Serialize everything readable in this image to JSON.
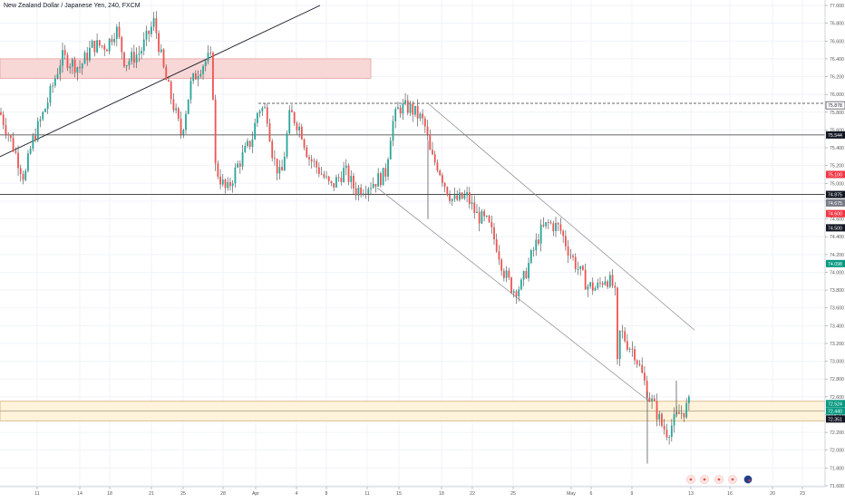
{
  "chart_title": "New Zealand Dollar / Japanese Yen, 240, FXCM",
  "colors": {
    "up": "#26a69a",
    "down": "#ef5350",
    "wick": "#555555",
    "resistance_zone": "#f8d7d7",
    "support_zone": "#fff3dc",
    "grid": "#f0f3fa",
    "axis_text": "#555555",
    "badge_black": "#131722",
    "badge_red": "#f23645",
    "badge_green": "#089981",
    "badge_gray": "#787b86"
  },
  "price_badges": [
    {
      "label": "75.878",
      "value": 75.878,
      "color": "badge_black",
      "inverted": false
    },
    {
      "label": "75.544",
      "value": 75.544,
      "color": "badge_black",
      "inverted": true
    },
    {
      "label": "75.100",
      "value": 75.1,
      "color": "badge_red",
      "inverted": true
    },
    {
      "label": "74.875",
      "value": 74.875,
      "color": "badge_black",
      "inverted": true
    },
    {
      "label": "74.675",
      "value": 74.78,
      "color": "badge_gray",
      "inverted": true
    },
    {
      "label": "74.600",
      "value": 74.66,
      "color": "badge_red",
      "inverted": true
    },
    {
      "label": "74.500",
      "value": 74.5,
      "color": "badge_black",
      "inverted": true
    },
    {
      "label": "74.098",
      "value": 74.098,
      "color": "badge_green",
      "inverted": true
    },
    {
      "label": "72.524",
      "value": 72.524,
      "color": "badge_green",
      "inverted": true
    },
    {
      "label": "72.440",
      "value": 72.44,
      "color": "badge_green",
      "inverted": true
    },
    {
      "label": "72.351",
      "value": 72.351,
      "color": "badge_black",
      "inverted": true
    }
  ],
  "chart_data": {
    "type": "candlestick",
    "title": "New Zealand Dollar / Japanese Yen, 240, FXCM",
    "symbol": "NZDJPY",
    "timeframe": "240",
    "y_axis": {
      "range": [
        71.6,
        77.0
      ],
      "ticks": [
        "77.000",
        "76.800",
        "76.600",
        "76.400",
        "76.200",
        "76.000",
        "75.800",
        "75.600",
        "75.400",
        "75.200",
        "75.000",
        "74.800",
        "74.600",
        "74.400",
        "74.200",
        "74.000",
        "73.800",
        "73.600",
        "73.400",
        "73.200",
        "73.000",
        "72.800",
        "72.600",
        "72.400",
        "72.200",
        "72.000",
        "71.800",
        "71.600"
      ]
    },
    "x_axis": {
      "ticks": [
        "11",
        "14",
        "18",
        "21",
        "25",
        "28",
        "Apr",
        "4",
        "8",
        "11",
        "15",
        "18",
        "22",
        "25",
        "May",
        "6",
        "9",
        "13",
        "16",
        "20",
        "23"
      ]
    },
    "price_path": [
      [
        0,
        75.8
      ],
      [
        15,
        75.4
      ],
      [
        27,
        75.05
      ],
      [
        35,
        75.45
      ],
      [
        52,
        75.9
      ],
      [
        68,
        76.42
      ],
      [
        88,
        76.3
      ],
      [
        102,
        76.55
      ],
      [
        118,
        76.55
      ],
      [
        128,
        76.75
      ],
      [
        138,
        76.35
      ],
      [
        155,
        76.48
      ],
      [
        170,
        76.82
      ],
      [
        182,
        76.2
      ],
      [
        192,
        75.85
      ],
      [
        200,
        75.55
      ],
      [
        210,
        76.1
      ],
      [
        220,
        76.3
      ],
      [
        229,
        76.4
      ],
      [
        234,
        76.38
      ],
      [
        237,
        75.2
      ],
      [
        243,
        75.05
      ],
      [
        250,
        74.9
      ],
      [
        262,
        75.2
      ],
      [
        278,
        75.5
      ],
      [
        285,
        75.85
      ],
      [
        294,
        75.82
      ],
      [
        301,
        75.3
      ],
      [
        310,
        75.05
      ],
      [
        320,
        75.8
      ],
      [
        332,
        75.6
      ],
      [
        340,
        75.3
      ],
      [
        352,
        75.15
      ],
      [
        365,
        74.95
      ],
      [
        380,
        75.15
      ],
      [
        392,
        74.92
      ],
      [
        410,
        75.0
      ],
      [
        425,
        75.1
      ],
      [
        432,
        75.65
      ],
      [
        440,
        75.85
      ],
      [
        452,
        75.85
      ],
      [
        465,
        75.72
      ],
      [
        470,
        75.6
      ],
      [
        475,
        75.3
      ],
      [
        483,
        75.2
      ],
      [
        492,
        74.95
      ],
      [
        500,
        74.8
      ],
      [
        515,
        74.85
      ],
      [
        525,
        74.65
      ],
      [
        538,
        74.55
      ],
      [
        548,
        74.3
      ],
      [
        556,
        74.0
      ],
      [
        566,
        73.8
      ],
      [
        575,
        73.85
      ],
      [
        585,
        74.15
      ],
      [
        596,
        74.45
      ],
      [
        605,
        74.55
      ],
      [
        617,
        74.5
      ],
      [
        627,
        74.25
      ],
      [
        637,
        74.05
      ],
      [
        648,
        73.85
      ],
      [
        658,
        73.82
      ],
      [
        668,
        73.95
      ],
      [
        678,
        73.82
      ],
      [
        681,
        72.95
      ],
      [
        684,
        73.35
      ],
      [
        692,
        73.2
      ],
      [
        700,
        73.1
      ],
      [
        708,
        72.85
      ],
      [
        716,
        72.6
      ],
      [
        722,
        72.48
      ],
      [
        730,
        72.28
      ],
      [
        736,
        72.2
      ],
      [
        742,
        72.3
      ],
      [
        748,
        72.4
      ],
      [
        755,
        72.45
      ],
      [
        760,
        72.52
      ]
    ],
    "spikes": [
      {
        "x": 472,
        "low": 74.6
      },
      {
        "x": 714,
        "low": 71.85
      },
      {
        "x": 746,
        "high": 72.78
      }
    ],
    "zones": [
      {
        "type": "resistance",
        "from": 76.18,
        "to": 76.4,
        "x_end": 409
      },
      {
        "type": "support",
        "from": 72.33,
        "to": 72.55
      }
    ],
    "horizontal_lines": [
      {
        "value": 75.544,
        "style": "solid"
      },
      {
        "value": 74.875,
        "style": "solid"
      },
      {
        "value": 75.9,
        "style": "dashed",
        "x_start": 285
      }
    ],
    "trendlines": [
      {
        "name": "rising-support",
        "from": [
          0,
          75.3
        ],
        "to": [
          353,
          77.0
        ]
      },
      {
        "name": "channel-upper",
        "from": [
          472,
          75.9
        ],
        "to": [
          766,
          73.35
        ]
      },
      {
        "name": "channel-lower",
        "from": [
          416,
          74.95
        ],
        "to": [
          716,
          72.55
        ]
      }
    ]
  }
}
